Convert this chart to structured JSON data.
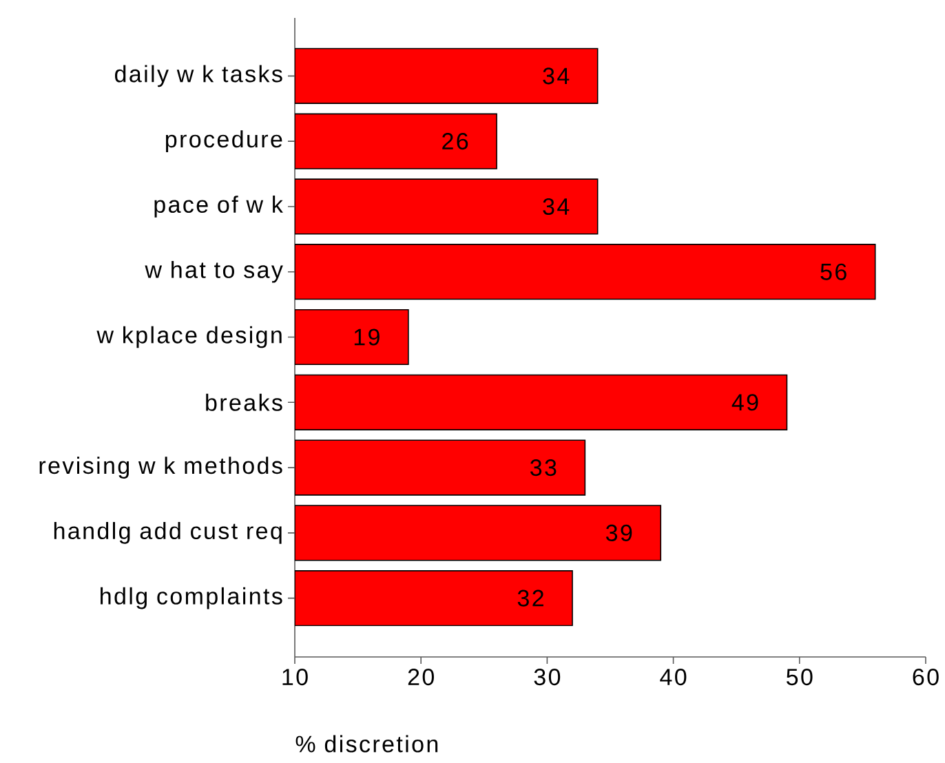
{
  "chart_data": {
    "type": "bar",
    "orientation": "horizontal",
    "categories": [
      "daily w k tasks",
      "procedure",
      "pace of w k",
      "w hat to say",
      "w kplace design",
      "breaks",
      "revising w k methods",
      "handlg add cust req",
      "hdlg complaints"
    ],
    "values": [
      34,
      26,
      34,
      56,
      19,
      49,
      33,
      39,
      32
    ],
    "color": "#ff0000",
    "xlim": [
      10,
      60
    ],
    "xticks": [
      10,
      20,
      30,
      40,
      50,
      60
    ],
    "xlabel": "% discretion",
    "data_labels": true
  }
}
